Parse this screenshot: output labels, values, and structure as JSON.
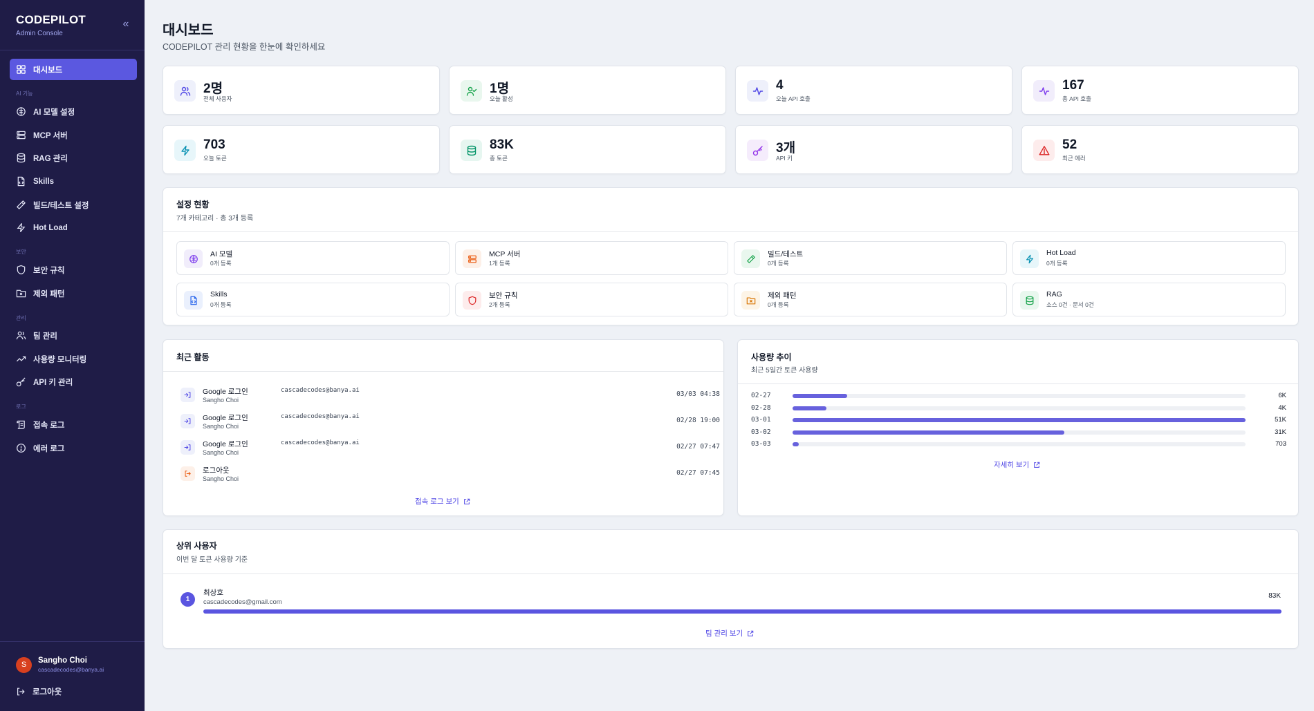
{
  "sidebar": {
    "brand_title": "CODEPILOT",
    "brand_sub": "Admin Console",
    "collapse_icon": "«",
    "dashboard_label": "대시보드",
    "sections": {
      "ai": "AI 기능",
      "security": "보안",
      "manage": "관리",
      "logs": "로그"
    },
    "items": {
      "ai_model": "AI 모델 설정",
      "mcp": "MCP 서버",
      "rag": "RAG 관리",
      "skills": "Skills",
      "build": "빌드/테스트 설정",
      "hotload": "Hot Load",
      "sec_rules": "보안 규칙",
      "exclude": "제외 패턴",
      "team": "팀 관리",
      "usage": "사용량 모니터링",
      "apikey": "API 키 관리",
      "access_log": "접속 로그",
      "error_log": "에러 로그"
    },
    "user": {
      "initial": "S",
      "name": "Sangho Choi",
      "email": "cascadecodes@banya.ai"
    },
    "logout_label": "로그아웃"
  },
  "header": {
    "title": "대시보드",
    "subtitle": "CODEPILOT 관리 현황을 한눈에 확인하세요"
  },
  "stats": [
    {
      "value": "2명",
      "label": "전체 사용자",
      "icon": "users-icon",
      "color": "#4f46e5",
      "bg": "#eef0fb"
    },
    {
      "value": "1명",
      "label": "오늘 활성",
      "icon": "user-check-icon",
      "color": "#16a34a",
      "bg": "#e9f7ee"
    },
    {
      "value": "4",
      "label": "오늘 API 호출",
      "icon": "activity-icon",
      "color": "#4f46e5",
      "bg": "#eef0fb"
    },
    {
      "value": "167",
      "label": "총 API 호출",
      "icon": "activity-icon",
      "color": "#7c3aed",
      "bg": "#f1edfb"
    },
    {
      "value": "703",
      "label": "오늘 토큰",
      "icon": "zap-icon",
      "color": "#0891b2",
      "bg": "#e7f6fa"
    },
    {
      "value": "83K",
      "label": "총 토큰",
      "icon": "database-icon",
      "color": "#059669",
      "bg": "#e6f6f0"
    },
    {
      "value": "3개",
      "label": "API 키",
      "icon": "key-icon",
      "color": "#9333ea",
      "bg": "#f5ecfc"
    },
    {
      "value": "52",
      "label": "최근 에러",
      "icon": "alert-icon",
      "color": "#dc2626",
      "bg": "#fdecec"
    }
  ],
  "config": {
    "title": "설정 현황",
    "subtitle": "7개 카테고리 · 총 3개 등록",
    "items": [
      {
        "name": "AI 모델",
        "count": "0개 등록",
        "icon": "brain-icon",
        "color": "#7c3aed",
        "bg": "#f1edfb"
      },
      {
        "name": "MCP 서버",
        "count": "1개 등록",
        "icon": "server-icon",
        "color": "#ea580c",
        "bg": "#fdf0e8"
      },
      {
        "name": "빌드/테스트",
        "count": "0개 등록",
        "icon": "hammer-icon",
        "color": "#16a34a",
        "bg": "#e9f7ee"
      },
      {
        "name": "Hot Load",
        "count": "0개 등록",
        "icon": "zap-icon",
        "color": "#0891b2",
        "bg": "#e7f6fa"
      },
      {
        "name": "Skills",
        "count": "0개 등록",
        "icon": "file-code-icon",
        "color": "#2563eb",
        "bg": "#eaf0fd"
      },
      {
        "name": "보안 규칙",
        "count": "2개 등록",
        "icon": "shield-icon",
        "color": "#dc2626",
        "bg": "#fdecec"
      },
      {
        "name": "제외 패턴",
        "count": "0개 등록",
        "icon": "folder-x-icon",
        "color": "#d97706",
        "bg": "#fdf4e6"
      },
      {
        "name": "RAG",
        "count": "소스 0건 · 문서 0건",
        "icon": "database-icon",
        "color": "#16a34a",
        "bg": "#e9f7ee"
      }
    ]
  },
  "activity": {
    "title": "최근 활동",
    "items": [
      {
        "title": "Google 로그인",
        "email": "cascadecodes@banya.ai",
        "user": "Sangho Choi",
        "time": "03/03 04:38",
        "icon": "login-icon",
        "color": "#4f46e5",
        "bg": "#eef0fb"
      },
      {
        "title": "Google 로그인",
        "email": "cascadecodes@banya.ai",
        "user": "Sangho Choi",
        "time": "02/28 19:00",
        "icon": "login-icon",
        "color": "#4f46e5",
        "bg": "#eef0fb"
      },
      {
        "title": "Google 로그인",
        "email": "cascadecodes@banya.ai",
        "user": "Sangho Choi",
        "time": "02/27 07:47",
        "icon": "login-icon",
        "color": "#4f46e5",
        "bg": "#eef0fb"
      },
      {
        "title": "로그아웃",
        "email": "",
        "user": "Sangho Choi",
        "time": "02/27 07:45",
        "icon": "logout-icon",
        "color": "#ea580c",
        "bg": "#fdf0e8"
      }
    ],
    "link": "접속 로그 보기"
  },
  "usage": {
    "title": "사용량 추이",
    "subtitle": "최근 5일간 토큰 사용량",
    "rows": [
      {
        "date": "02-27",
        "value": "6K",
        "fraction": 0.12
      },
      {
        "date": "02-28",
        "value": "4K",
        "fraction": 0.075
      },
      {
        "date": "03-01",
        "value": "51K",
        "fraction": 1.0
      },
      {
        "date": "03-02",
        "value": "31K",
        "fraction": 0.6
      },
      {
        "date": "03-03",
        "value": "703",
        "fraction": 0.014
      }
    ],
    "link": "자세히 보기"
  },
  "top_users": {
    "title": "상위 사용자",
    "subtitle": "이번 달 토큰 사용량 기준",
    "users": [
      {
        "rank": "1",
        "name": "최상호",
        "email": "cascadecodes@gmail.com",
        "value": "83K",
        "fraction": 1.0
      }
    ],
    "link": "팀 관리 보기"
  }
}
